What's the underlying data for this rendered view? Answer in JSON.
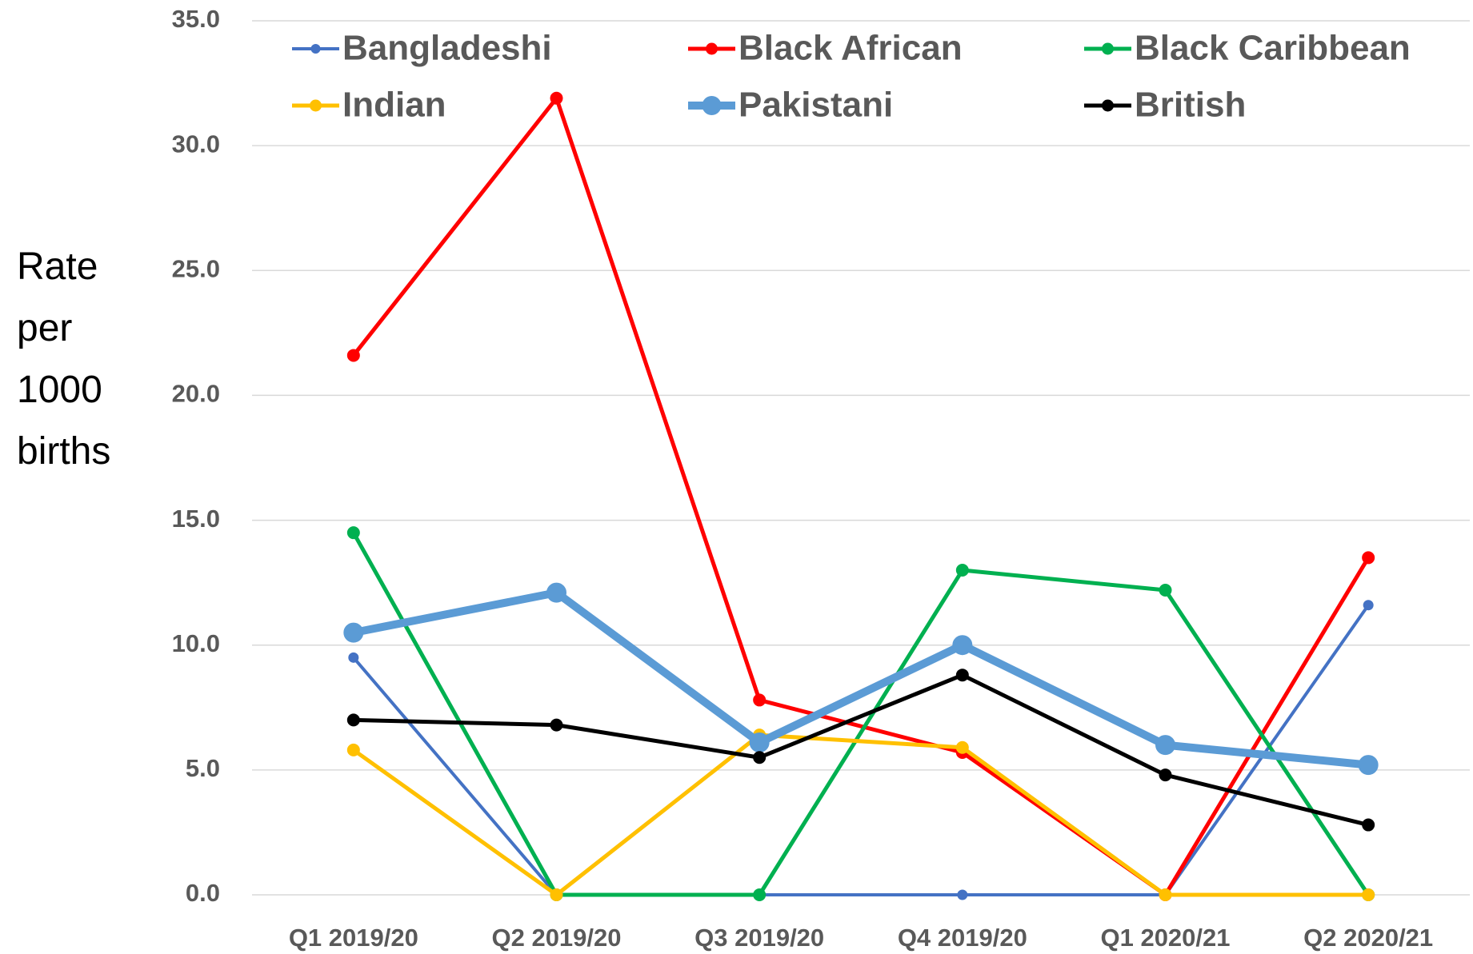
{
  "chart_data": {
    "type": "line",
    "y_label": "Rate per 1000 births",
    "categories": [
      "Q1 2019/20",
      "Q2 2019/20",
      "Q3  2019/20",
      "Q4  2019/20",
      "Q1 2020/21",
      "Q2 2020/21"
    ],
    "series": [
      {
        "name": "Bangladeshi",
        "color": "#4472c4",
        "values": [
          9.5,
          0,
          0,
          0,
          0,
          11.6
        ]
      },
      {
        "name": "Black African",
        "color": "#ff0000",
        "values": [
          21.6,
          31.9,
          7.8,
          5.7,
          0,
          13.5
        ]
      },
      {
        "name": "Black Caribbean",
        "color": "#00b050",
        "values": [
          14.5,
          0,
          0,
          13.0,
          12.2,
          0
        ]
      },
      {
        "name": "Indian",
        "color": "#ffc000",
        "values": [
          5.8,
          0,
          6.4,
          5.9,
          0,
          0
        ]
      },
      {
        "name": "Pakistani",
        "color": "#5b9bd5",
        "values": [
          10.5,
          12.1,
          6.1,
          10.0,
          6.0,
          5.2
        ]
      },
      {
        "name": "British",
        "color": "#000000",
        "values": [
          7.0,
          6.8,
          5.5,
          8.8,
          4.8,
          2.8
        ]
      }
    ],
    "ylim": [
      0,
      35
    ],
    "yticks": [
      {
        "value": 0,
        "label": "0.0"
      },
      {
        "value": 5,
        "label": "5.0"
      },
      {
        "value": 10,
        "label": "10.0"
      },
      {
        "value": 15,
        "label": "15.0"
      },
      {
        "value": 20,
        "label": "20.0"
      },
      {
        "value": 25,
        "label": "25.0"
      },
      {
        "value": 30,
        "label": "30.0"
      },
      {
        "value": 35,
        "label": "35.0"
      }
    ],
    "grid": true,
    "legend": "top"
  }
}
